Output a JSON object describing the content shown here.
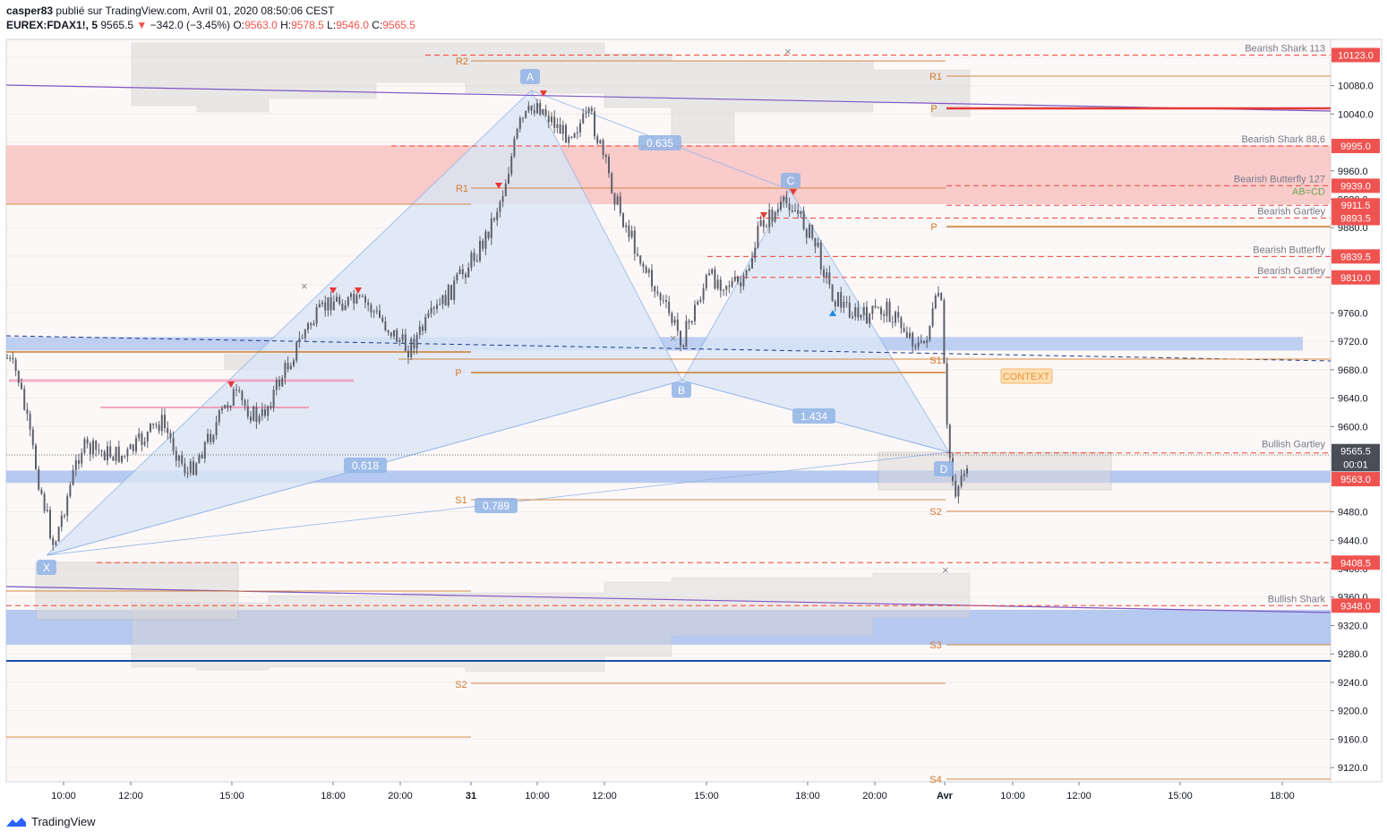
{
  "header": {
    "author": "casper83",
    "published_text": "publié sur TradingView.com, Avril 01, 2020 08:50:06 CEST",
    "symbol": "EUREX:FDAX1!, 5",
    "last": "9565.5",
    "change_arrow": "▼",
    "change": "−342.0 (−3.45%)",
    "open_label": "O:",
    "open": "9563.0",
    "high_label": "H:",
    "high": "9578.5",
    "low_label": "L:",
    "low": "9546.0",
    "close_label": "C:",
    "close": "9565.5"
  },
  "footer": {
    "brand": "TradingView",
    "logo_icon": "tradingview-logo-icon"
  },
  "colors": {
    "up": "#26a69a",
    "down": "#ef5350",
    "candle": "#5d606b",
    "pattern_fill": "#dbe6f6",
    "pattern_stroke": "#90b4e6",
    "pivot": "#d17a2a",
    "zone_red": "#f8bcbc",
    "zone_blue": "#a9c1ef",
    "gray_zone": "#d8d6d5",
    "level_line": "#f44336",
    "price_tag": "#ef5350"
  },
  "chart_data": {
    "type": "candlestick",
    "y_axis": {
      "range": [
        9100,
        10145
      ],
      "ticks": [
        "10080.0",
        "10040.0",
        "9960.0",
        "9920.0",
        "9880.0",
        "9760.0",
        "9720.0",
        "9680.0",
        "9640.0",
        "9600.0",
        "9480.0",
        "9440.0",
        "9400.0",
        "9360.0",
        "9320.0",
        "9280.0",
        "9240.0",
        "9200.0",
        "9160.0",
        "9120.0"
      ]
    },
    "x_axis": {
      "ticks": [
        "10:00",
        "12:00",
        "15:00",
        "18:00",
        "20:00",
        "31",
        "10:00",
        "12:00",
        "15:00",
        "18:00",
        "20:00",
        "Avr",
        "10:00",
        "12:00",
        "15:00",
        "18:00"
      ]
    },
    "price_tags": [
      {
        "value": "10123.0",
        "price": 10123,
        "style": "red"
      },
      {
        "value": "9995.0",
        "price": 9995,
        "style": "red"
      },
      {
        "value": "9939.0",
        "price": 9939,
        "style": "red"
      },
      {
        "value": "9911.5",
        "price": 9911.5,
        "style": "red"
      },
      {
        "value": "9893.5",
        "price": 9893.5,
        "style": "red"
      },
      {
        "value": "9839.5",
        "price": 9839.5,
        "style": "red"
      },
      {
        "value": "9810.0",
        "price": 9810,
        "style": "red"
      },
      {
        "value": "9565.5",
        "price": 9565.5,
        "style": "dark"
      },
      {
        "value": "00:01",
        "price": 9547,
        "style": "dark"
      },
      {
        "value": "9563.0",
        "price": 9526,
        "style": "red"
      },
      {
        "value": "9408.5",
        "price": 9408.5,
        "style": "red"
      },
      {
        "value": "9348.0",
        "price": 9348,
        "style": "red"
      }
    ],
    "level_labels": [
      {
        "text": "Bearish Shark 113",
        "price": 10123
      },
      {
        "text": "Bearish Shark 88,6",
        "price": 9995
      },
      {
        "text": "Bearish Butterfly 127",
        "price": 9939
      },
      {
        "text": "AB=CD",
        "price": 9921,
        "color": "#6aa84f"
      },
      {
        "text": "Bearish Gartley",
        "price": 9893.5
      },
      {
        "text": "Bearish Butterfly",
        "price": 9839.5
      },
      {
        "text": "Bearish Gartley",
        "price": 9810
      },
      {
        "text": "Bullish Gartley",
        "price": 9565.5
      },
      {
        "text": "Bullish Shark",
        "price": 9348
      }
    ],
    "pivot_labels": [
      {
        "text": "R2",
        "price": 10113
      },
      {
        "text": "R1",
        "price": 9936
      },
      {
        "text": "P",
        "price": 9678
      },
      {
        "text": "S1",
        "price": 9502
      },
      {
        "text": "S2",
        "price": 9244
      },
      {
        "text": "R1",
        "price": 10085
      },
      {
        "text": "P",
        "price": 10052
      },
      {
        "text": "P",
        "price": 9885
      },
      {
        "text": "S1",
        "price": 9698
      },
      {
        "text": "S2",
        "price": 9485
      },
      {
        "text": "S3",
        "price": 9299
      },
      {
        "text": "S4",
        "price": 9113
      }
    ],
    "pattern_labels": [
      {
        "text": "X"
      },
      {
        "text": "A"
      },
      {
        "text": "B"
      },
      {
        "text": "C"
      },
      {
        "text": "D"
      },
      {
        "text": "0.618"
      },
      {
        "text": "0.635"
      },
      {
        "text": "0.789"
      },
      {
        "text": "1.434"
      }
    ],
    "context_label": "CONTEXT",
    "last_price": 9565.5,
    "ohlc": {
      "open": 9563.0,
      "high": 9578.5,
      "low": 9546.0,
      "close": 9565.5
    }
  }
}
